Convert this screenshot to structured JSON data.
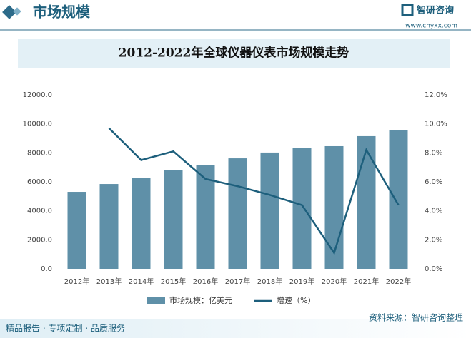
{
  "header": {
    "title": "市场规模",
    "brand": "智研咨询",
    "url": "www.chyxx.com"
  },
  "footer": {
    "slogan": "精品报告 · 专项定制 · 品质服务",
    "source": "资料来源：智研咨询整理"
  },
  "chart_data": {
    "type": "bar-line",
    "title": "2012-2022年全球仪器仪表市场规模走势",
    "categories": [
      "2012年",
      "2013年",
      "2014年",
      "2015年",
      "2016年",
      "2017年",
      "2018年",
      "2019年",
      "2020年",
      "2021年",
      "2022年"
    ],
    "series": [
      {
        "name": "市场规模：亿美元",
        "type": "bar",
        "color": "#5f90a8",
        "values": [
          5310,
          5850,
          6250,
          6790,
          7180,
          7620,
          8020,
          8360,
          8460,
          9150,
          9590
        ]
      },
      {
        "name": "增速（%）",
        "type": "line",
        "axis": "y2",
        "color": "#1d5f7c",
        "values": [
          null,
          9.7,
          7.5,
          8.1,
          6.2,
          5.7,
          5.1,
          4.4,
          1.1,
          8.2,
          4.4
        ]
      }
    ],
    "ylim": [
      0,
      12000
    ],
    "yticks": [
      {
        "value": 0,
        "label": "0.0"
      },
      {
        "value": 2000,
        "label": "2000.0"
      },
      {
        "value": 4000,
        "label": "4000.0"
      },
      {
        "value": 6000,
        "label": "6000.0"
      },
      {
        "value": 8000,
        "label": "8000.0"
      },
      {
        "value": 10000,
        "label": "10000.0"
      },
      {
        "value": 12000,
        "label": "12000.0"
      }
    ],
    "y2lim": [
      0,
      12
    ],
    "y2ticks": [
      {
        "value": 0,
        "label": "0.0%"
      },
      {
        "value": 2,
        "label": "2.0%"
      },
      {
        "value": 4,
        "label": "4.0%"
      },
      {
        "value": 6,
        "label": "6.0%"
      },
      {
        "value": 8,
        "label": "8.0%"
      },
      {
        "value": 10,
        "label": "10.0%"
      },
      {
        "value": 12,
        "label": "12.0%"
      }
    ],
    "grid": false,
    "legend": "bottom"
  }
}
